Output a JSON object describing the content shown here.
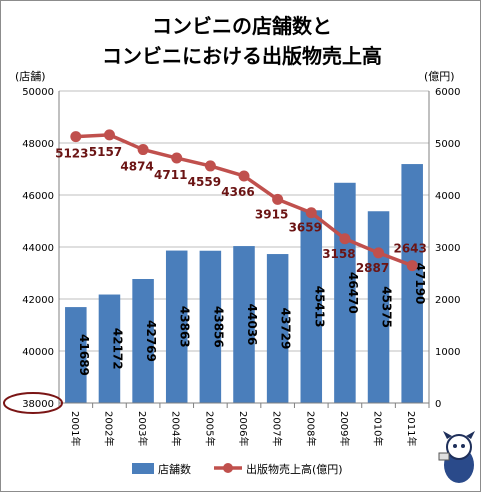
{
  "chart_data": {
    "type": "bar+line",
    "title_lines": [
      "コンビニの店舗数と",
      "コンビニにおける出版物売上高"
    ],
    "left_axis_unit": "(店舗)",
    "right_axis_unit": "(億円)",
    "categories": [
      "2001年",
      "2002年",
      "2003年",
      "2004年",
      "2005年",
      "2006年",
      "2007年",
      "2008年",
      "2009年",
      "2010年",
      "2011年"
    ],
    "series": [
      {
        "name": "店舗数",
        "type": "bar",
        "axis": "left",
        "color": "#4a7ebb",
        "values": [
          41689,
          42172,
          42769,
          43863,
          43856,
          44036,
          43729,
          45413,
          46470,
          45375,
          47190
        ],
        "labels": [
          "41689",
          "42172",
          "42769",
          "43863",
          "43856",
          "44036",
          "43729",
          "45413",
          "46470",
          "45375",
          "47190"
        ]
      },
      {
        "name": "出版物売上高(億円)",
        "type": "line",
        "axis": "right",
        "color": "#c0504d",
        "values": [
          5123,
          5157,
          4874,
          4711,
          4559,
          4366,
          3915,
          3659,
          3158,
          2887,
          2643
        ],
        "labels": [
          "5123",
          "5157",
          "4874",
          "4711",
          "4559",
          "4366",
          "3915",
          "3659",
          "3158",
          "2887",
          "2643"
        ]
      }
    ],
    "left_axis": {
      "min": 38000,
      "max": 50000,
      "step": 2000,
      "ticks": [
        "38000",
        "40000",
        "42000",
        "44000",
        "46000",
        "48000",
        "50000"
      ]
    },
    "right_axis": {
      "min": 0,
      "max": 6000,
      "step": 1000,
      "ticks": [
        "0",
        "1000",
        "2000",
        "3000",
        "4000",
        "5000",
        "6000"
      ]
    },
    "grid": true,
    "legend_position": "bottom",
    "highlight_tick": "38000",
    "highlight_color": "#7a1515"
  }
}
